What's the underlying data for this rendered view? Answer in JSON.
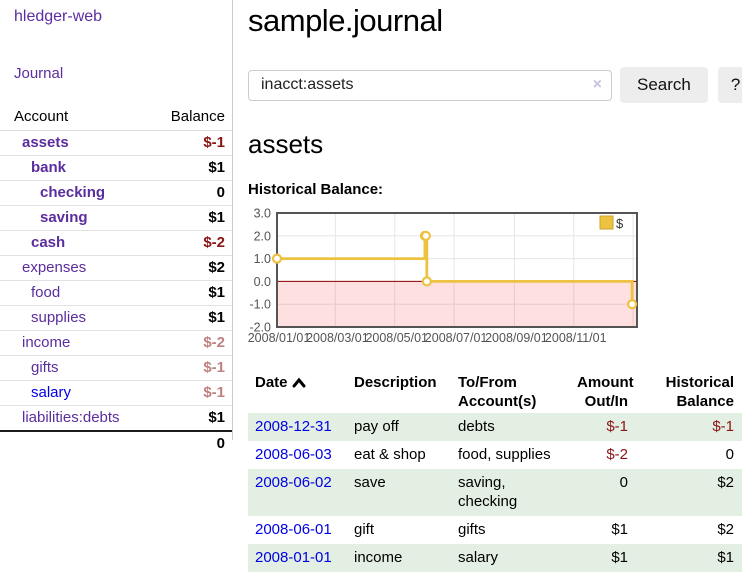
{
  "colors": {
    "purple_link": "#5b2d9e",
    "blue_link": "#0000e6",
    "negative_strong": "#8b1414",
    "negative_muted": "#c08181",
    "row_green": "#e3efe3",
    "series_gold": "#edc240",
    "zero_line": "#8b0000",
    "chart_border": "#545454",
    "grid_line": "#e6e6e6"
  },
  "sidebar": {
    "app_title": "hledger-web",
    "nav_journal": "Journal",
    "accounts_table": {
      "headers": {
        "account": "Account",
        "balance": "Balance"
      },
      "rows": [
        {
          "name": "assets",
          "balance": "$-1",
          "indent": 1,
          "bold": true,
          "tone": "strong"
        },
        {
          "name": "bank",
          "balance": "$1",
          "indent": 2,
          "bold": true,
          "tone": ""
        },
        {
          "name": "checking",
          "balance": "0",
          "indent": 3,
          "bold": true,
          "tone": ""
        },
        {
          "name": "saving",
          "balance": "$1",
          "indent": 3,
          "bold": true,
          "tone": ""
        },
        {
          "name": "cash",
          "balance": "$-2",
          "indent": 2,
          "bold": true,
          "tone": "strong"
        },
        {
          "name": "expenses",
          "balance": "$2",
          "indent": 1,
          "bold": false,
          "tone": ""
        },
        {
          "name": "food",
          "balance": "$1",
          "indent": 2,
          "bold": false,
          "tone": ""
        },
        {
          "name": "supplies",
          "balance": "$1",
          "indent": 2,
          "bold": false,
          "tone": ""
        },
        {
          "name": "income",
          "balance": "$-2",
          "indent": 1,
          "bold": false,
          "tone": "muted"
        },
        {
          "name": "gifts",
          "balance": "$-1",
          "indent": 2,
          "bold": false,
          "tone": "muted"
        },
        {
          "name": "salary",
          "balance": "$-1",
          "indent": 2,
          "bold": false,
          "tone": "muted",
          "blue": true
        },
        {
          "name": "liabilities:debts",
          "balance": "$1",
          "indent": 1,
          "bold": false,
          "tone": "",
          "last": true
        }
      ],
      "total": "0"
    }
  },
  "header": {
    "title": "sample.journal"
  },
  "search": {
    "value": "inacct:assets",
    "clear_icon": "×",
    "search_label": "Search",
    "help_label": "?"
  },
  "account_page": {
    "heading": "assets",
    "chart_label": "Historical Balance:"
  },
  "chart_data": {
    "type": "line",
    "style": "step-after",
    "title": "Historical Balance:",
    "series": [
      {
        "name": "$",
        "color": "#edc240",
        "points": [
          {
            "date": "2008-01-01",
            "day": 0,
            "value": 1
          },
          {
            "date": "2008-06-01",
            "day": 152,
            "value": 2
          },
          {
            "date": "2008-06-02",
            "day": 153,
            "value": 2
          },
          {
            "date": "2008-06-03",
            "day": 154,
            "value": 0
          },
          {
            "date": "2008-12-31",
            "day": 365,
            "value": -1
          }
        ]
      }
    ],
    "x_ticks": [
      {
        "label": "2008/01/01",
        "day": 0
      },
      {
        "label": "2008/03/01",
        "day": 60
      },
      {
        "label": "2008/05/01",
        "day": 121
      },
      {
        "label": "2008/07/01",
        "day": 182
      },
      {
        "label": "2008/09/01",
        "day": 244
      },
      {
        "label": "2008/11/01",
        "day": 305
      },
      {
        "label": "",
        "day": 366
      }
    ],
    "x_range_days": [
      0,
      370
    ],
    "y_ticks": [
      3.0,
      2.0,
      1.0,
      0.0,
      -1.0,
      -2.0
    ],
    "ylim": [
      -2,
      3
    ],
    "legend": {
      "label": "$",
      "position": "top-right"
    },
    "negative_region": true,
    "grid": true
  },
  "transactions": {
    "headers": {
      "date": "Date",
      "description": "Description",
      "accounts": "To/From Account(s)",
      "amount": "Amount Out/In",
      "balance": "Historical Balance"
    },
    "rows": [
      {
        "date": "2008-12-31",
        "description": "pay off",
        "accounts": "debts",
        "amount": "$-1",
        "balance": "$-1"
      },
      {
        "date": "2008-06-03",
        "description": "eat & shop",
        "accounts": "food, supplies",
        "amount": "$-2",
        "balance": "0"
      },
      {
        "date": "2008-06-02",
        "description": "save",
        "accounts": "saving, checking",
        "amount": "0",
        "balance": "$2"
      },
      {
        "date": "2008-06-01",
        "description": "gift",
        "accounts": "gifts",
        "amount": "$1",
        "balance": "$2"
      },
      {
        "date": "2008-01-01",
        "description": "income",
        "accounts": "salary",
        "amount": "$1",
        "balance": "$1"
      }
    ]
  }
}
